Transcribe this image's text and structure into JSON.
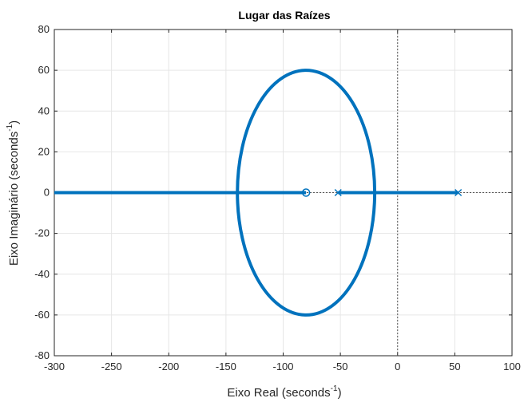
{
  "chart_data": {
    "type": "scatter",
    "title": "Lugar das Raízes",
    "xlabel": "Eixo Real (seconds",
    "xlabel_sup": "-1",
    "xlabel_end": ")",
    "ylabel": "Eixo Imaginário (seconds",
    "ylabel_sup": "-1",
    "ylabel_end": ")",
    "xlim": [
      -300,
      100
    ],
    "ylim": [
      -80,
      80
    ],
    "xticks": [
      -300,
      -250,
      -200,
      -150,
      -100,
      -50,
      0,
      50,
      100
    ],
    "yticks": [
      -80,
      -60,
      -40,
      -20,
      0,
      20,
      40,
      60,
      80
    ],
    "xtick_labels": [
      "-300",
      "-250",
      "-200",
      "-150",
      "-100",
      "-50",
      "0",
      "50",
      "100"
    ],
    "ytick_labels": [
      "-80",
      "-60",
      "-40",
      "-20",
      "0",
      "20",
      "40",
      "60",
      "80"
    ],
    "grid": true,
    "colors": {
      "locus": "#0072BD",
      "grid": "#e6e6e6",
      "axes": "#262626"
    },
    "zeros": [
      {
        "x": -80,
        "y": 0
      }
    ],
    "poles": [
      {
        "x": -52,
        "y": 0
      },
      {
        "x": 53,
        "y": 0
      }
    ],
    "real_axis_segments": [
      {
        "from": -300,
        "to": -80
      },
      {
        "from": -52,
        "to": 53
      }
    ],
    "circle": {
      "center_x": -80,
      "center_y": 0,
      "radius_x": 60,
      "radius_y": 60
    },
    "real_axis_dashed": {
      "from": -300,
      "to": 100
    },
    "imag_axis_dashed": {
      "x": 0
    }
  }
}
